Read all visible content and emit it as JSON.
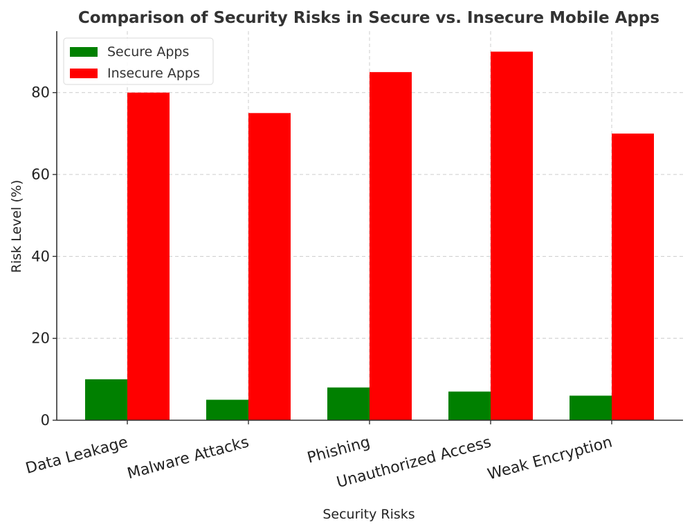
{
  "chart_data": {
    "type": "bar",
    "title": "Comparison of Security Risks in Secure vs. Insecure Mobile Apps",
    "xlabel": "Security Risks",
    "ylabel": "Risk Level (%)",
    "categories": [
      "Data Leakage",
      "Malware Attacks",
      "Phishing",
      "Unauthorized Access",
      "Weak Encryption"
    ],
    "series": [
      {
        "name": "Secure Apps",
        "color": "#008000",
        "values": [
          10,
          5,
          8,
          7,
          6
        ]
      },
      {
        "name": "Insecure Apps",
        "color": "#ff0000",
        "values": [
          80,
          75,
          85,
          90,
          70
        ]
      }
    ],
    "ylim": [
      0,
      95
    ],
    "yticks": [
      0,
      20,
      40,
      60,
      80
    ],
    "grid": true,
    "legend_position": "top-left"
  }
}
